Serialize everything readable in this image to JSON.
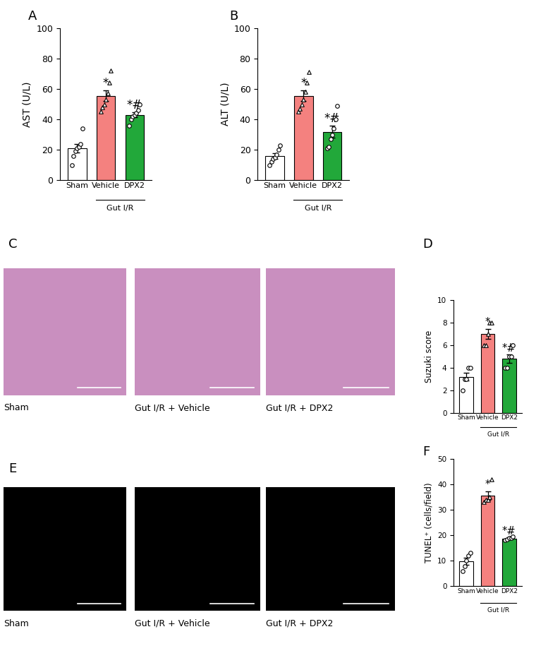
{
  "chart_data": [
    {
      "type": "bar",
      "panel": "A",
      "y_label": "AST (U/L)",
      "categories": [
        "Sham",
        "Vehicle",
        "DPX2"
      ],
      "values": [
        20.9,
        55.6,
        43.0
      ],
      "errors": [
        2.8,
        3.5,
        1.7
      ],
      "points": [
        [
          10,
          16,
          19,
          21,
          22,
          24,
          34
        ],
        [
          45,
          48,
          50,
          53,
          57,
          64,
          72
        ],
        [
          36,
          40,
          42,
          43,
          44,
          46,
          50
        ]
      ],
      "colors": [
        "#ffffff",
        "#f4817f",
        "#22a83a"
      ],
      "markers": [
        "o",
        "^",
        "o"
      ],
      "significance": [
        null,
        "*",
        "*#"
      ],
      "group_label": {
        "text": "Gut I/R",
        "categories": [
          "Vehicle",
          "DPX2"
        ]
      },
      "ylim": [
        0,
        100
      ],
      "yticks": [
        0,
        20,
        40,
        60,
        80,
        100
      ]
    },
    {
      "type": "bar",
      "panel": "B",
      "y_label": "ALT (U/L)",
      "categories": [
        "Sham",
        "Vehicle",
        "DPX2"
      ],
      "values": [
        15.9,
        55.4,
        31.9
      ],
      "errors": [
        1.8,
        3.5,
        3.8
      ],
      "points": [
        [
          10,
          12,
          14,
          15,
          17,
          20,
          23
        ],
        [
          45,
          47,
          50,
          53,
          58,
          64,
          71
        ],
        [
          21,
          22,
          27,
          30,
          34,
          40,
          49
        ]
      ],
      "colors": [
        "#ffffff",
        "#f4817f",
        "#22a83a"
      ],
      "markers": [
        "o",
        "^",
        "o"
      ],
      "significance": [
        null,
        "*",
        "*#"
      ],
      "group_label": {
        "text": "Gut I/R",
        "categories": [
          "Vehicle",
          "DPX2"
        ]
      },
      "ylim": [
        0,
        100
      ],
      "yticks": [
        0,
        20,
        40,
        60,
        80,
        100
      ]
    },
    {
      "type": "image",
      "panel": "C",
      "color": "#c98fbf",
      "captions": [
        "Sham",
        "Gut I/R + Vehicle",
        "Gut I/R + DPX2"
      ]
    },
    {
      "type": "bar",
      "panel": "D",
      "y_label": "Suzuki score",
      "categories": [
        "Sham",
        "Vehicle",
        "DPX2"
      ],
      "values": [
        3.2,
        7.0,
        4.8
      ],
      "errors": [
        0.37,
        0.45,
        0.37
      ],
      "points": [
        [
          2,
          3,
          3,
          4,
          4
        ],
        [
          6,
          6,
          7,
          8,
          8
        ],
        [
          4,
          4,
          5,
          5,
          6
        ]
      ],
      "colors": [
        "#ffffff",
        "#f4817f",
        "#22a83a"
      ],
      "markers": [
        "o",
        "^",
        "o"
      ],
      "significance": [
        null,
        "*",
        "*#"
      ],
      "group_label": {
        "text": "Gut I/R",
        "categories": [
          "Vehicle",
          "DPX2"
        ]
      },
      "ylim": [
        0,
        10
      ],
      "yticks": [
        0,
        2,
        4,
        6,
        8,
        10
      ]
    },
    {
      "type": "image",
      "panel": "E",
      "color": "#000000",
      "captions": [
        "Sham",
        "Gut I/R + Vehicle",
        "Gut I/R + DPX2"
      ]
    },
    {
      "type": "bar",
      "panel": "F",
      "y_label": "TUNEL⁺ (cells/field)",
      "categories": [
        "Sham",
        "Vehicle",
        "DPX2"
      ],
      "values": [
        9.8,
        35.6,
        18.8
      ],
      "errors": [
        1.5,
        1.8,
        0.3
      ],
      "points": [
        [
          6,
          8,
          10,
          12,
          13
        ],
        [
          33,
          34,
          34,
          35,
          42
        ],
        [
          18,
          18.5,
          19,
          19,
          19.5
        ]
      ],
      "colors": [
        "#ffffff",
        "#f4817f",
        "#22a83a"
      ],
      "markers": [
        "o",
        "^",
        "o"
      ],
      "significance": [
        null,
        "*",
        "*#"
      ],
      "group_label": {
        "text": "Gut I/R",
        "categories": [
          "Vehicle",
          "DPX2"
        ]
      },
      "ylim": [
        0,
        50
      ],
      "yticks": [
        0,
        10,
        20,
        30,
        40,
        50
      ]
    }
  ]
}
